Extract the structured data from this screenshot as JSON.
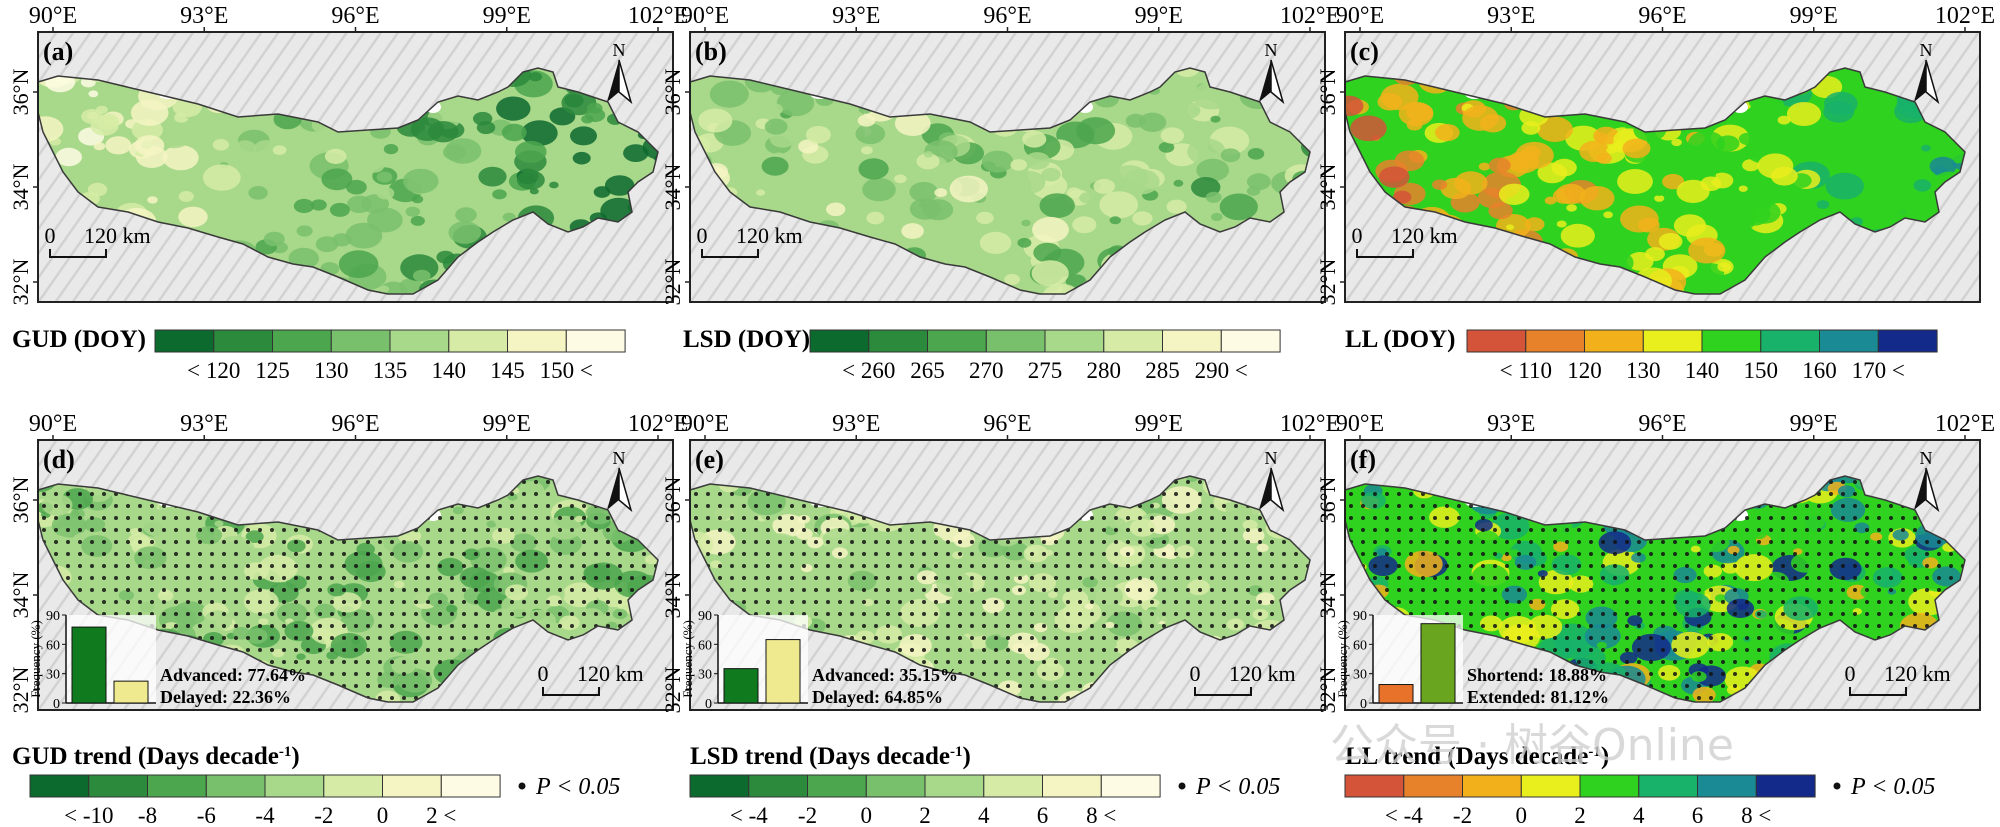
{
  "panels": [
    {
      "id": "a",
      "label": "(a)",
      "variable": "GUD",
      "ramp": "gud",
      "show_points": false,
      "scale_label_zero": "0",
      "scale_label_dist": "120 km",
      "scale_pos": "left",
      "inset": null
    },
    {
      "id": "b",
      "label": "(b)",
      "variable": "LSD",
      "ramp": "lsd",
      "show_points": false,
      "scale_label_zero": "0",
      "scale_label_dist": "120 km",
      "scale_pos": "left",
      "inset": null
    },
    {
      "id": "c",
      "label": "(c)",
      "variable": "LL",
      "ramp": "ll",
      "show_points": false,
      "scale_label_zero": "0",
      "scale_label_dist": "120 km",
      "scale_pos": "left",
      "inset": null
    },
    {
      "id": "d",
      "label": "(d)",
      "variable": "GUD trend",
      "ramp": "gudtrend",
      "show_points": true,
      "scale_label_zero": "0",
      "scale_label_dist": "120 km",
      "scale_pos": "right",
      "inset": {
        "ylabel": "Frequency (%)",
        "ticks": [
          "0",
          "30",
          "60",
          "90"
        ],
        "bars": [
          {
            "name": "Advanced",
            "value": 77.64,
            "color": "#107a1e"
          },
          {
            "name": "Delayed",
            "value": 22.36,
            "color": "#efe98f"
          }
        ],
        "text1": "Advanced: 77.64%",
        "text2": "Delayed: 22.36%"
      }
    },
    {
      "id": "e",
      "label": "(e)",
      "variable": "LSD trend",
      "ramp": "lsdtrend",
      "show_points": true,
      "scale_label_zero": "0",
      "scale_label_dist": "120 km",
      "scale_pos": "right",
      "inset": {
        "ylabel": "Frequency (%)",
        "ticks": [
          "0",
          "30",
          "60",
          "90"
        ],
        "bars": [
          {
            "name": "Advanced",
            "value": 35.15,
            "color": "#107a1e"
          },
          {
            "name": "Delayed",
            "value": 64.85,
            "color": "#efe98f"
          }
        ],
        "text1": "Advanced: 35.15%",
        "text2": "Delayed: 64.85%"
      }
    },
    {
      "id": "f",
      "label": "(f)",
      "variable": "LL trend",
      "ramp": "lltrend",
      "show_points": true,
      "scale_label_zero": "0",
      "scale_label_dist": "120 km",
      "scale_pos": "right",
      "inset": {
        "ylabel": "Frequency (%)",
        "ticks": [
          "0",
          "30",
          "60",
          "90"
        ],
        "bars": [
          {
            "name": "Shortend",
            "value": 18.88,
            "color": "#e8722a"
          },
          {
            "name": "Extended",
            "value": 81.12,
            "color": "#6aa51f"
          }
        ],
        "text1": "Shortend: 18.88%",
        "text2": "Extended: 81.12%"
      }
    }
  ],
  "lon_labels": [
    "90°E",
    "93°E",
    "96°E",
    "99°E",
    "102°E"
  ],
  "lat_labels": [
    "36°N",
    "34°N",
    "32°N"
  ],
  "north_label": "N",
  "legends": [
    {
      "id": "gud",
      "title": "GUD (DOY)",
      "colors": [
        "#0d6a2e",
        "#2b8a3c",
        "#4ca64e",
        "#79c06c",
        "#a8d88a",
        "#d6ecA6",
        "#f4f5c2",
        "#fdfbe3"
      ],
      "ticks": [
        "< 120",
        "125",
        "130",
        "135",
        "140",
        "145",
        "150 <"
      ]
    },
    {
      "id": "lsd",
      "title": "LSD (DOY)",
      "colors": [
        "#0d6a2e",
        "#2b8a3c",
        "#4ca64e",
        "#79c06c",
        "#a8d88a",
        "#d6eca6",
        "#f4f5c2",
        "#fdfbe3"
      ],
      "ticks": [
        "< 260",
        "265",
        "270",
        "275",
        "280",
        "285",
        "290 <"
      ]
    },
    {
      "id": "ll",
      "title": "LL (DOY)",
      "colors": [
        "#d4543a",
        "#e8822a",
        "#f2b11b",
        "#e9ef1c",
        "#2fd21f",
        "#18b26a",
        "#1a8a94",
        "#142a8a"
      ],
      "ticks": [
        "< 110",
        "120",
        "130",
        "140",
        "150",
        "160",
        "170 <"
      ]
    },
    {
      "id": "gudtrend",
      "title": "GUD trend (Days decade",
      "sup": "-1",
      "title_end": ")",
      "colors": [
        "#0d6a2e",
        "#2b8a3c",
        "#4ca64e",
        "#79c06c",
        "#a8d88a",
        "#d6eca6",
        "#f4f5c2",
        "#fdfbe3"
      ],
      "ticks": [
        "< -10",
        "-8",
        "-6",
        "-4",
        "-2",
        "0",
        "2 <"
      ],
      "p_label": "P < 0.05"
    },
    {
      "id": "lsdtrend",
      "title": "LSD trend (Days decade",
      "sup": "-1",
      "title_end": ")",
      "colors": [
        "#0d6a2e",
        "#2b8a3c",
        "#4ca64e",
        "#79c06c",
        "#a8d88a",
        "#d6eca6",
        "#f4f5c2",
        "#fdfbe3"
      ],
      "ticks": [
        "< -4",
        "-2",
        "0",
        "2",
        "4",
        "6",
        "8 <"
      ],
      "p_label": "P < 0.05"
    },
    {
      "id": "lltrend",
      "title": "LL trend (Days decade",
      "sup": "-1",
      "title_end": ")",
      "colors": [
        "#d4543a",
        "#e8822a",
        "#f2b11b",
        "#e9ef1c",
        "#2fd21f",
        "#18b26a",
        "#1a8a94",
        "#142a8a"
      ],
      "ticks": [
        "< -4",
        "-2",
        "0",
        "2",
        "4",
        "6",
        "8 <"
      ],
      "p_label": "P < 0.05"
    }
  ],
  "watermark": "公众号 · 树谷Online",
  "colors": {
    "frame": "#222222",
    "terrain": "#e4e4e4",
    "outline": "#3a3a3a",
    "point": "#111111"
  }
}
